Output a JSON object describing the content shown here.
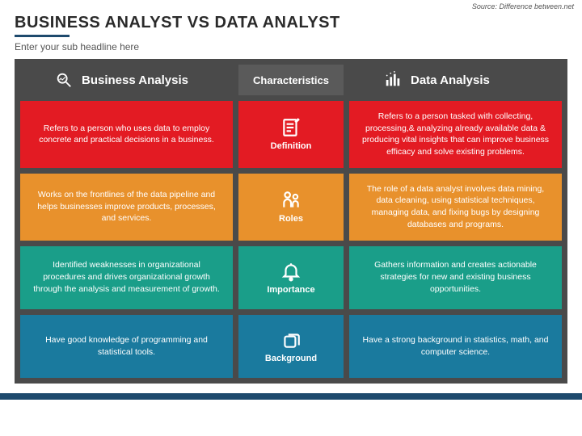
{
  "source": "Source: Difference between.net",
  "title": "BUSINESS ANALYST VS DATA ANALYST",
  "subtitle": "Enter your sub headline here",
  "headers": {
    "left": "Business Analysis",
    "center": "Characteristics",
    "right": "Data Analysis"
  },
  "rows": [
    {
      "label": "Definition",
      "color": "#e31b23",
      "left": "Refers to a person who uses data to employ concrete and practical decisions in a business.",
      "right": "Refers to a person tasked with collecting, processing,& analyzing already available data & producing vital insights that can improve business efficacy and solve existing problems."
    },
    {
      "label": "Roles",
      "color": "#e8912c",
      "left": "Works on the frontlines of the data pipeline and helps businesses improve products, processes, and services.",
      "right": "The role of a data analyst involves data mining, data cleaning, using statistical techniques, managing data, and fixing bugs by designing databases and programs."
    },
    {
      "label": "Importance",
      "color": "#1a9e89",
      "left": "Identified weaknesses in organizational procedures and drives organizational growth through the analysis and measurement of growth.",
      "right": "Gathers information and creates actionable strategies for new and existing business opportunities."
    },
    {
      "label": "Background",
      "color": "#1a7a9e",
      "left": "Have good knowledge of programming and statistical tools.",
      "right": "Have a strong background in statistics, math, and computer science."
    }
  ],
  "colors": {
    "frame": "#4a4a4a",
    "midHeader": "#5a5a5a",
    "accent": "#1e4a6d"
  }
}
